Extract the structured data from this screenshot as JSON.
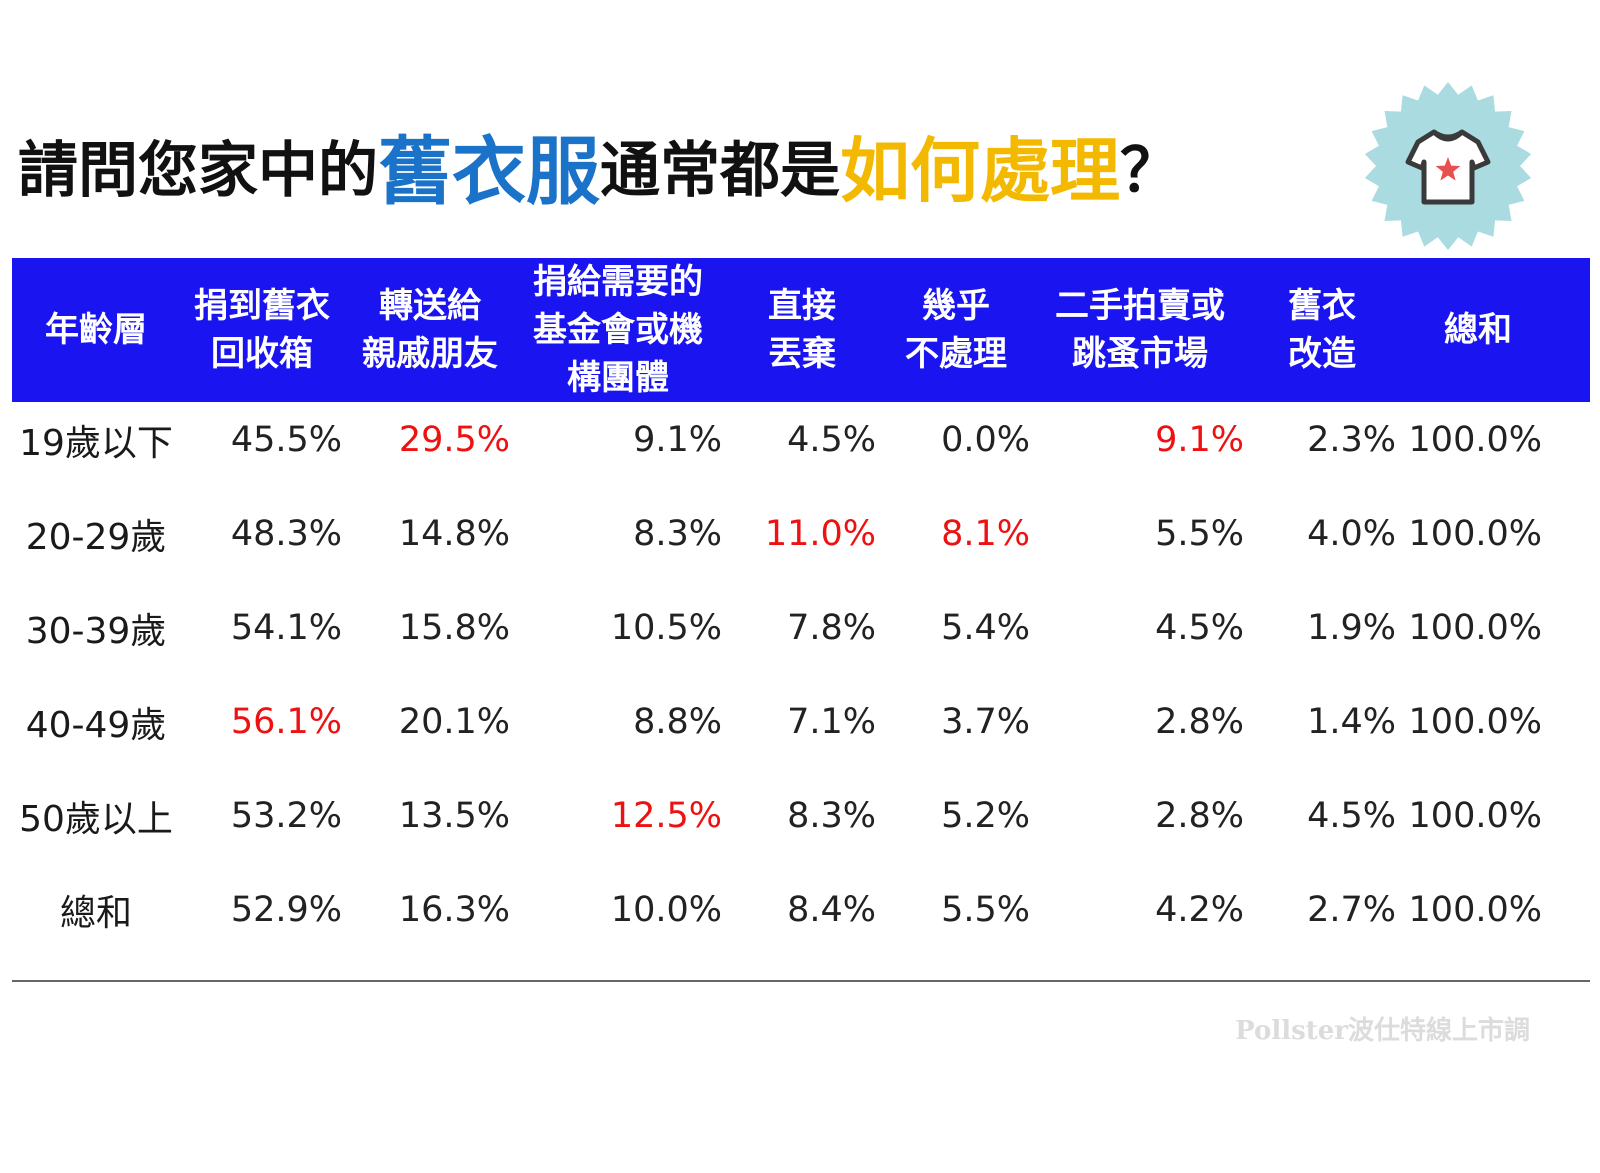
{
  "title": {
    "part1": "請問您家中的",
    "part2": "舊衣服",
    "part3": "通常都是",
    "part4": "如何處理",
    "part5": "？"
  },
  "badge": {
    "icon": "t-shirt-star-icon",
    "bg_color": "#a9dbe0",
    "star_color": "#e8504f"
  },
  "colors": {
    "header_bg": "#1a14f0",
    "highlight": "#ee1111",
    "title_blue": "#1a73c8",
    "title_gold": "#f3b800"
  },
  "chart_data": {
    "type": "table",
    "columns": [
      "年齡層",
      "捐到舊衣\n回收箱",
      "轉送給\n親戚朋友",
      "捐給需要的\n基金會或機\n構團體",
      "直接\n丟棄",
      "幾乎\n不處理",
      "二手拍賣或\n跳蚤市場",
      "舊衣\n改造",
      "總和"
    ],
    "rows": [
      {
        "label": "19歲以下",
        "values": [
          "45.5%",
          "29.5%",
          "9.1%",
          "4.5%",
          "0.0%",
          "9.1%",
          "2.3%",
          "100.0%"
        ],
        "highlight": [
          1,
          5
        ]
      },
      {
        "label": "20-29歲",
        "values": [
          "48.3%",
          "14.8%",
          "8.3%",
          "11.0%",
          "8.1%",
          "5.5%",
          "4.0%",
          "100.0%"
        ],
        "highlight": [
          3,
          4
        ]
      },
      {
        "label": "30-39歲",
        "values": [
          "54.1%",
          "15.8%",
          "10.5%",
          "7.8%",
          "5.4%",
          "4.5%",
          "1.9%",
          "100.0%"
        ],
        "highlight": []
      },
      {
        "label": "40-49歲",
        "values": [
          "56.1%",
          "20.1%",
          "8.8%",
          "7.1%",
          "3.7%",
          "2.8%",
          "1.4%",
          "100.0%"
        ],
        "highlight": [
          0
        ]
      },
      {
        "label": "50歲以上",
        "values": [
          "53.2%",
          "13.5%",
          "12.5%",
          "8.3%",
          "5.2%",
          "2.8%",
          "4.5%",
          "100.0%"
        ],
        "highlight": [
          2
        ]
      },
      {
        "label": "總和",
        "values": [
          "52.9%",
          "16.3%",
          "10.0%",
          "8.4%",
          "5.5%",
          "4.2%",
          "2.7%",
          "100.0%"
        ],
        "highlight": []
      }
    ]
  },
  "source": "Pollster波仕特線上市調"
}
